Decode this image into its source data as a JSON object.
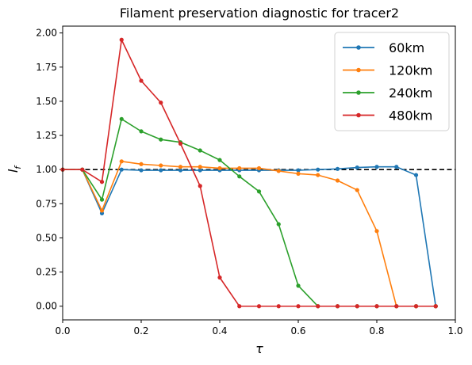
{
  "chart_data": {
    "type": "line",
    "title": "Filament preservation diagnostic for tracer2",
    "xlabel": "τ",
    "ylabel_main": "l",
    "ylabel_sub": "f",
    "xlim": [
      0.0,
      1.0
    ],
    "ylim": [
      -0.1,
      2.05
    ],
    "xticks": [
      0.0,
      0.2,
      0.4,
      0.6,
      0.8,
      1.0
    ],
    "xtick_labels": [
      "0.0",
      "0.2",
      "0.4",
      "0.6",
      "0.8",
      "1.0"
    ],
    "yticks": [
      0.0,
      0.25,
      0.5,
      0.75,
      1.0,
      1.25,
      1.5,
      1.75,
      2.0
    ],
    "ytick_labels": [
      "0.00",
      "0.25",
      "0.50",
      "0.75",
      "1.00",
      "1.25",
      "1.50",
      "1.75",
      "2.00"
    ],
    "grid": false,
    "legend_position": "top-right",
    "reference_line": {
      "y": 1.0,
      "style": "dashed",
      "color": "#000000"
    },
    "x": [
      0.0,
      0.05,
      0.1,
      0.15,
      0.2,
      0.25,
      0.3,
      0.35,
      0.4,
      0.45,
      0.5,
      0.55,
      0.6,
      0.65,
      0.7,
      0.75,
      0.8,
      0.85,
      0.9,
      0.95
    ],
    "series": [
      {
        "name": "60km",
        "color": "#1f77b4",
        "values": [
          1.0,
          1.0,
          0.68,
          1.0,
          0.995,
          0.995,
          0.995,
          0.995,
          0.995,
          0.995,
          0.995,
          0.995,
          0.995,
          1.0,
          1.005,
          1.015,
          1.02,
          1.02,
          0.96,
          0.0
        ]
      },
      {
        "name": "120km",
        "color": "#ff7f0e",
        "values": [
          1.0,
          1.0,
          0.7,
          1.06,
          1.04,
          1.03,
          1.02,
          1.02,
          1.01,
          1.01,
          1.01,
          0.99,
          0.97,
          0.96,
          0.92,
          0.85,
          0.55,
          0.0,
          0.0,
          0.0
        ]
      },
      {
        "name": "240km",
        "color": "#2ca02c",
        "values": [
          1.0,
          1.0,
          0.78,
          1.37,
          1.28,
          1.22,
          1.2,
          1.14,
          1.07,
          0.95,
          0.84,
          0.6,
          0.15,
          0.0,
          0.0,
          0.0,
          0.0,
          0.0,
          0.0,
          0.0
        ]
      },
      {
        "name": "480km",
        "color": "#d62728",
        "values": [
          1.0,
          1.0,
          0.91,
          1.95,
          1.65,
          1.49,
          1.19,
          0.88,
          0.21,
          0.0,
          0.0,
          0.0,
          0.0,
          0.0,
          0.0,
          0.0,
          0.0,
          0.0,
          0.0,
          0.0
        ]
      }
    ]
  }
}
